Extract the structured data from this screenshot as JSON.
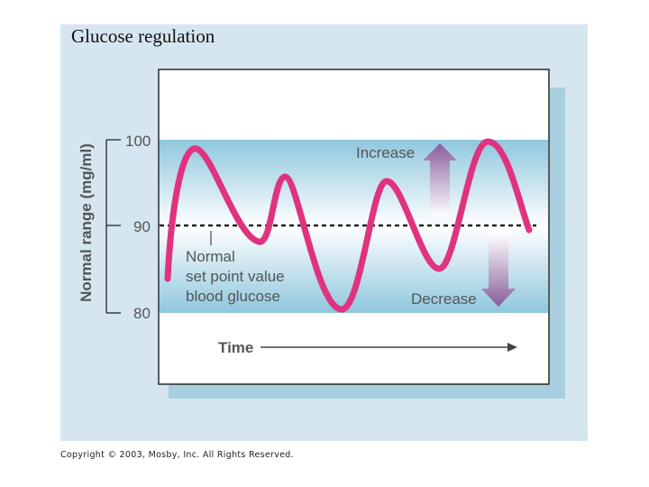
{
  "slide": {
    "title": "Glucose regulation",
    "copyright": "Copyright © 2003, Mosby, Inc. All Rights Reserved."
  },
  "diagram": {
    "y_axis_label": "Normal range (mg/ml)",
    "ticks": [
      "100",
      "90",
      "80"
    ],
    "x_axis_label": "Time",
    "set_point_label": [
      "Normal",
      "set point value",
      "blood glucose"
    ],
    "increase_label": "Increase",
    "decrease_label": "Decrease",
    "colors": {
      "curve": "#e0337f",
      "band": "#9fd0e4",
      "arrow": "#8a5a9a",
      "shadow": "#a9cee0",
      "text": "#555555"
    }
  }
}
